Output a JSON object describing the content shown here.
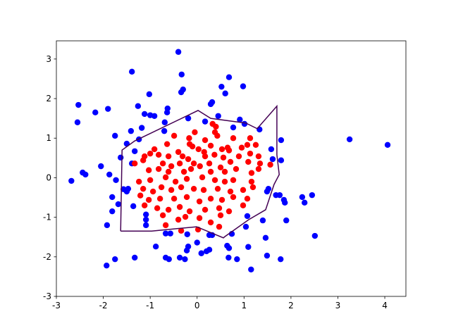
{
  "chart_data": {
    "type": "scatter",
    "xlim": [
      -3,
      4.45
    ],
    "ylim": [
      -3,
      3.46
    ],
    "xticks": [
      -3,
      -2,
      -1,
      0,
      1,
      2,
      3,
      4
    ],
    "yticks": [
      -3,
      -2,
      -1,
      0,
      1,
      2,
      3
    ],
    "series": [
      {
        "color": "blue",
        "x": [
          -0.4,
          -1.39,
          -0.33,
          0.68,
          0.52,
          0.98,
          -0.3,
          -0.34,
          0.6,
          -1.02,
          -2.53,
          0.32,
          0.29,
          -1.9,
          -1.26,
          -2.17,
          -0.63,
          -0.64,
          -1.12,
          -1.0,
          -0.91,
          0.45,
          -0.19,
          0.91,
          0.17,
          -2.55,
          1.01,
          0.77,
          -0.69,
          -0.7,
          -1.41,
          -1.18,
          -1.75,
          -1.24,
          -1.5,
          1.33,
          1.79,
          3.25,
          4.06,
          1.58,
          1.61,
          1.79,
          -1.33,
          -1.63,
          -1.39,
          -2.05,
          -2.44,
          -2.38,
          -1.87,
          -2.68,
          -1.73,
          1.52,
          1.49,
          -1.57,
          -1.47,
          -1.5,
          -1.81,
          1.76,
          1.68,
          2.24,
          2.45,
          2.29,
          1.85,
          1.87,
          -1.36,
          -1.68,
          -1.81,
          1.07,
          -1.09,
          -1.09,
          1.4,
          1.9,
          -1.92,
          -1.09,
          -0.67,
          -0.57,
          -0.21,
          1.04,
          1.46,
          0.74,
          0.26,
          0.32,
          0.0,
          0.64,
          1.09,
          -0.88,
          -0.19,
          0.68,
          -0.22,
          0.26,
          0.2,
          0.09,
          -1.75,
          -1.33,
          -0.67,
          -0.37,
          -0.26,
          0.67,
          0.85,
          1.49,
          1.78,
          -1.93,
          1.15,
          2.51,
          -0.6
        ],
        "values": [
          3.18,
          2.68,
          2.61,
          2.54,
          2.3,
          2.31,
          2.23,
          2.16,
          2.13,
          2.11,
          1.84,
          1.91,
          1.86,
          1.74,
          1.81,
          1.65,
          1.75,
          1.65,
          1.61,
          1.58,
          1.56,
          1.56,
          1.5,
          1.47,
          1.42,
          1.4,
          1.36,
          1.27,
          1.4,
          1.18,
          1.18,
          1.26,
          1.06,
          0.97,
          0.86,
          1.22,
          0.95,
          0.97,
          0.83,
          0.72,
          0.47,
          0.44,
          0.67,
          0.51,
          0.36,
          0.29,
          0.13,
          0.08,
          0.08,
          -0.08,
          -0.06,
          -0.28,
          -0.35,
          -0.29,
          -0.28,
          -0.35,
          -0.49,
          -0.44,
          -0.44,
          -0.49,
          -0.44,
          -0.63,
          -0.56,
          -0.63,
          -0.72,
          -0.67,
          -0.85,
          -0.97,
          -0.93,
          -1.06,
          -1.08,
          -1.08,
          -1.2,
          -1.2,
          -1.41,
          -1.41,
          -1.43,
          -1.24,
          -1.52,
          -1.42,
          -1.45,
          -1.45,
          -1.64,
          -1.72,
          -1.75,
          -1.74,
          -1.74,
          -1.78,
          -1.84,
          -1.82,
          -1.86,
          -1.91,
          -2.06,
          -2.02,
          -2.02,
          -2.02,
          -2.06,
          -2.02,
          -2.06,
          -1.97,
          -2.06,
          -2.22,
          -2.32,
          -1.47,
          -2.06
        ]
      },
      {
        "color": "red",
        "x": [
          0.33,
          0.4,
          -0.05,
          -0.49,
          0.38,
          -0.17,
          0.17,
          0.43,
          0.77,
          1.13,
          -0.64,
          -0.16,
          -0.1,
          0.29,
          1.07,
          0.65,
          -0.91,
          -0.82,
          -0.4,
          0.03,
          0.15,
          0.53,
          0.68,
          0.95,
          1.25,
          -1.12,
          -1.0,
          -0.61,
          -0.31,
          -0.19,
          0.17,
          0.37,
          0.56,
          0.89,
          1.13,
          1.31,
          -1.33,
          -1.15,
          -0.73,
          -0.55,
          -0.37,
          -0.07,
          0.06,
          0.26,
          0.5,
          0.71,
          1.09,
          1.34,
          1.56,
          -1.03,
          -0.82,
          -0.61,
          -0.28,
          -0.13,
          0.29,
          0.59,
          0.83,
          1.16,
          1.31,
          -1.24,
          -1.0,
          -0.67,
          -0.46,
          -0.22,
          0.11,
          0.38,
          0.59,
          0.77,
          1.16,
          -1.15,
          -0.94,
          -0.76,
          -0.55,
          -0.34,
          -0.07,
          0.14,
          0.44,
          0.71,
          0.98,
          1.19,
          -1.21,
          -1.03,
          -0.79,
          -0.49,
          -0.22,
          0.05,
          0.29,
          0.53,
          0.77,
          1.07,
          -1.12,
          -0.85,
          -0.61,
          -0.37,
          -0.16,
          0.17,
          0.47,
          0.68,
          0.98,
          -0.73,
          -0.4,
          -0.25,
          0.05,
          0.29,
          0.5,
          -0.67,
          -0.34,
          0.02,
          0.47
        ],
        "values": [
          1.36,
          1.29,
          1.15,
          1.06,
          1.15,
          1.0,
          0.95,
          1.06,
          1.0,
          1.0,
          0.85,
          0.85,
          0.79,
          0.81,
          0.83,
          0.76,
          0.72,
          0.58,
          0.65,
          0.72,
          0.65,
          0.72,
          0.69,
          0.76,
          0.83,
          0.54,
          0.61,
          0.54,
          0.54,
          0.47,
          0.54,
          0.58,
          0.51,
          0.54,
          0.61,
          0.54,
          0.36,
          0.44,
          0.36,
          0.29,
          0.36,
          0.36,
          0.29,
          0.36,
          0.26,
          0.4,
          0.4,
          0.36,
          0.33,
          0.19,
          0.22,
          0.15,
          0.15,
          0.22,
          0.15,
          0.15,
          0.22,
          0.12,
          0.22,
          -0.1,
          -0.06,
          0.01,
          -0.1,
          -0.03,
          0.01,
          -0.06,
          -0.1,
          -0.06,
          -0.1,
          -0.28,
          -0.35,
          -0.24,
          -0.31,
          -0.24,
          -0.28,
          -0.31,
          -0.28,
          -0.35,
          -0.31,
          -0.24,
          -0.45,
          -0.56,
          -0.53,
          -0.53,
          -0.49,
          -0.6,
          -0.53,
          -0.56,
          -0.49,
          -0.53,
          -0.7,
          -0.77,
          -0.81,
          -0.74,
          -0.85,
          -0.81,
          -0.77,
          -0.85,
          -0.7,
          -0.95,
          -1.06,
          -0.99,
          -1.02,
          -1.13,
          -0.95,
          -1.2,
          -1.34,
          -1.31,
          -1.24
        ]
      },
      {
        "type": "line",
        "color": "#440154",
        "x": [
          -1.63,
          -1.6,
          -1.33,
          0.02,
          0.29,
          1.04,
          1.28,
          1.7,
          1.7,
          1.75,
          1.64,
          1.46,
          1.1,
          0.59,
          0.56,
          -0.01,
          -0.97,
          -1.63
        ],
        "values": [
          -1.35,
          0.7,
          0.93,
          1.7,
          1.5,
          1.38,
          1.24,
          1.81,
          0.58,
          0.08,
          -0.17,
          -0.81,
          -1.06,
          -1.49,
          -1.52,
          -1.24,
          -1.35,
          -1.35
        ]
      }
    ]
  }
}
